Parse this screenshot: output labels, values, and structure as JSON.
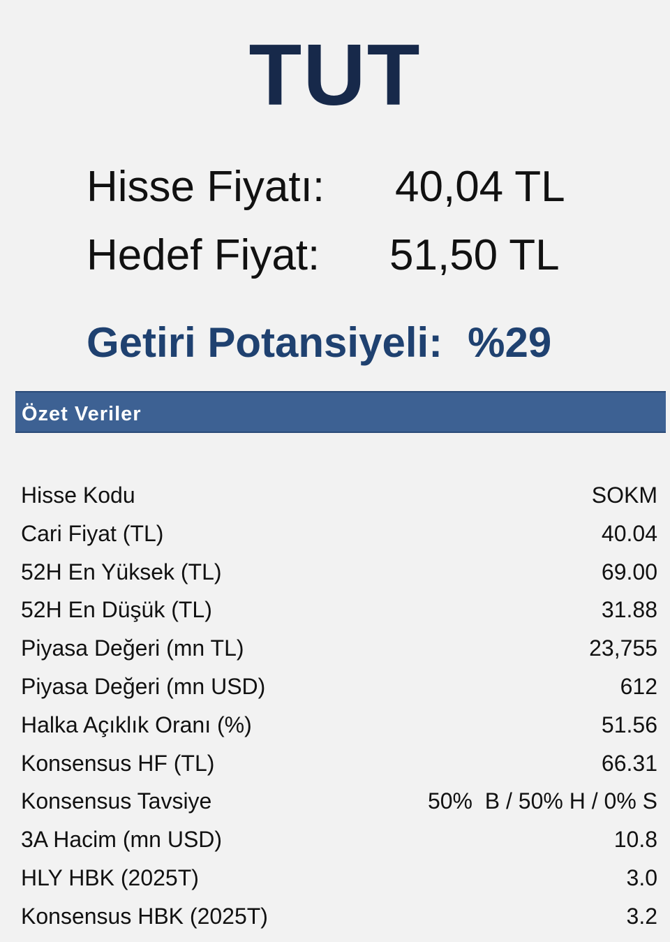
{
  "recommendation": "TUT",
  "prices": {
    "current_label": "Hisse Fiyatı:",
    "current_value": "40,04 TL",
    "target_label": "Hedef Fiyat:",
    "target_value": "51,50 TL"
  },
  "potential": {
    "label": "Getiri Potansiyeli:",
    "value": "%29"
  },
  "summary": {
    "title": "Özet Veriler",
    "rows": [
      {
        "label": "Hisse Kodu",
        "value": "SOKM"
      },
      {
        "label": "Cari Fiyat (TL)",
        "value": "40.04"
      },
      {
        "label": "52H En Yüksek (TL)",
        "value": "69.00"
      },
      {
        "label": "52H En Düşük (TL)",
        "value": "31.88"
      },
      {
        "label": "Piyasa Değeri (mn TL)",
        "value": "23,755"
      },
      {
        "label": "Piyasa Değeri (mn USD)",
        "value": "612"
      },
      {
        "label": "Halka Açıklık Oranı (%)",
        "value": "51.56"
      },
      {
        "label": "Konsensus HF (TL)",
        "value": "66.31"
      },
      {
        "label": "Konsensus Tavsiye",
        "value": "50%  B / 50% H / 0% S"
      },
      {
        "label": "3A Hacim (mn USD)",
        "value": "10.8"
      },
      {
        "label": "HLY HBK (2025T)",
        "value": "3.0"
      },
      {
        "label": "Konsensus HBK (2025T)",
        "value": "3.2"
      }
    ]
  },
  "colors": {
    "recommendation": "#17294a",
    "potential": "#1f4170",
    "section_bar": "#3d6193",
    "background": "#f2f2f2"
  }
}
